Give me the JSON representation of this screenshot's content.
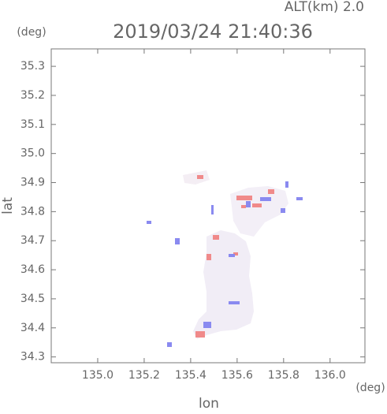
{
  "chart_data": {
    "type": "map",
    "title": "2019/03/24 21:40:36",
    "subtitle": "ALT(km) 2.0",
    "y_unit": "(deg)",
    "x_unit": "(deg)",
    "x_label": "lon",
    "y_label": "lat",
    "xlim": [
      134.8,
      136.15
    ],
    "ylim": [
      34.28,
      35.36
    ],
    "xticks": [
      {
        "value": 135,
        "label": "135.0"
      },
      135.2,
      135.4,
      135.6,
      135.8,
      {
        "value": 136,
        "label": "136.0"
      }
    ],
    "yticks": [
      34.3,
      34.4,
      34.5,
      34.6,
      34.7,
      34.8,
      34.9,
      {
        "value": 35,
        "label": "35.0"
      },
      35.1,
      35.2,
      35.3
    ]
  }
}
